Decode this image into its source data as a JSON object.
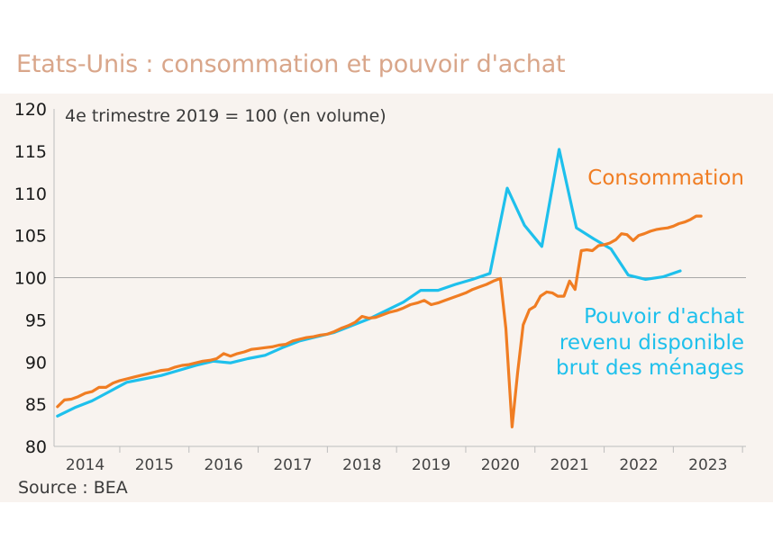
{
  "title": "Etats-Unis : consommation et pouvoir d'achat",
  "source": "Source : BEA",
  "chart_data": {
    "type": "line",
    "subtitle": "4e trimestre 2019 = 100 (en volume)",
    "ylim": [
      80,
      120
    ],
    "yticks": [
      80,
      85,
      90,
      95,
      100,
      105,
      110,
      115,
      120
    ],
    "xlim": [
      2013.55,
      2023.55
    ],
    "xticks": [
      2014,
      2015,
      2016,
      2017,
      2018,
      2019,
      2020,
      2021,
      2022,
      2023
    ],
    "reference_line": 100,
    "grid": false,
    "series": [
      {
        "name": "Consommation",
        "color": "#f07d23",
        "label_lines": [
          "Consommation"
        ],
        "points": [
          [
            2013.6,
            84.7
          ],
          [
            2013.7,
            85.5
          ],
          [
            2013.8,
            85.6
          ],
          [
            2013.9,
            85.9
          ],
          [
            2014.0,
            86.3
          ],
          [
            2014.1,
            86.5
          ],
          [
            2014.2,
            87.0
          ],
          [
            2014.3,
            87.0
          ],
          [
            2014.4,
            87.5
          ],
          [
            2014.5,
            87.8
          ],
          [
            2014.6,
            88.0
          ],
          [
            2014.7,
            88.2
          ],
          [
            2014.8,
            88.4
          ],
          [
            2014.9,
            88.6
          ],
          [
            2015.0,
            88.8
          ],
          [
            2015.1,
            89.0
          ],
          [
            2015.2,
            89.1
          ],
          [
            2015.3,
            89.4
          ],
          [
            2015.4,
            89.6
          ],
          [
            2015.5,
            89.7
          ],
          [
            2015.6,
            89.9
          ],
          [
            2015.7,
            90.1
          ],
          [
            2015.8,
            90.2
          ],
          [
            2015.9,
            90.4
          ],
          [
            2016.0,
            91.0
          ],
          [
            2016.1,
            90.7
          ],
          [
            2016.2,
            91.0
          ],
          [
            2016.3,
            91.2
          ],
          [
            2016.4,
            91.5
          ],
          [
            2016.5,
            91.6
          ],
          [
            2016.6,
            91.7
          ],
          [
            2016.7,
            91.8
          ],
          [
            2016.8,
            92.0
          ],
          [
            2016.9,
            92.1
          ],
          [
            2017.0,
            92.5
          ],
          [
            2017.1,
            92.7
          ],
          [
            2017.2,
            92.9
          ],
          [
            2017.3,
            93.0
          ],
          [
            2017.4,
            93.2
          ],
          [
            2017.5,
            93.3
          ],
          [
            2017.6,
            93.6
          ],
          [
            2017.7,
            94.0
          ],
          [
            2017.8,
            94.3
          ],
          [
            2017.9,
            94.7
          ],
          [
            2018.0,
            95.4
          ],
          [
            2018.1,
            95.2
          ],
          [
            2018.2,
            95.3
          ],
          [
            2018.3,
            95.6
          ],
          [
            2018.4,
            95.9
          ],
          [
            2018.5,
            96.1
          ],
          [
            2018.6,
            96.4
          ],
          [
            2018.7,
            96.8
          ],
          [
            2018.8,
            97.0
          ],
          [
            2018.9,
            97.3
          ],
          [
            2019.0,
            96.8
          ],
          [
            2019.1,
            97.0
          ],
          [
            2019.2,
            97.3
          ],
          [
            2019.3,
            97.6
          ],
          [
            2019.4,
            97.9
          ],
          [
            2019.5,
            98.2
          ],
          [
            2019.6,
            98.6
          ],
          [
            2019.7,
            98.9
          ],
          [
            2019.8,
            99.2
          ],
          [
            2019.9,
            99.6
          ],
          [
            2020.0,
            99.9
          ],
          [
            2020.08,
            94.0
          ],
          [
            2020.17,
            82.3
          ],
          [
            2020.25,
            88.8
          ],
          [
            2020.33,
            94.4
          ],
          [
            2020.42,
            96.2
          ],
          [
            2020.5,
            96.6
          ],
          [
            2020.58,
            97.8
          ],
          [
            2020.67,
            98.3
          ],
          [
            2020.75,
            98.2
          ],
          [
            2020.83,
            97.8
          ],
          [
            2020.92,
            97.8
          ],
          [
            2021.0,
            99.6
          ],
          [
            2021.08,
            98.6
          ],
          [
            2021.17,
            103.2
          ],
          [
            2021.25,
            103.3
          ],
          [
            2021.33,
            103.2
          ],
          [
            2021.42,
            103.8
          ],
          [
            2021.5,
            103.9
          ],
          [
            2021.58,
            104.1
          ],
          [
            2021.67,
            104.5
          ],
          [
            2021.75,
            105.2
          ],
          [
            2021.83,
            105.1
          ],
          [
            2021.92,
            104.4
          ],
          [
            2022.0,
            105.0
          ],
          [
            2022.08,
            105.2
          ],
          [
            2022.17,
            105.5
          ],
          [
            2022.25,
            105.7
          ],
          [
            2022.33,
            105.8
          ],
          [
            2022.42,
            105.9
          ],
          [
            2022.5,
            106.1
          ],
          [
            2022.58,
            106.4
          ],
          [
            2022.67,
            106.6
          ],
          [
            2022.75,
            106.9
          ],
          [
            2022.83,
            107.3
          ],
          [
            2022.9,
            107.3
          ]
        ]
      },
      {
        "name": "Pouvoir d'achat revenu disponible brut des ménages",
        "color": "#1ec0ec",
        "label_lines": [
          "Pouvoir d'achat",
          "revenu disponible",
          "brut des ménages"
        ],
        "points": [
          [
            2013.6,
            83.6
          ],
          [
            2013.85,
            84.6
          ],
          [
            2014.1,
            85.4
          ],
          [
            2014.35,
            86.5
          ],
          [
            2014.6,
            87.6
          ],
          [
            2014.85,
            88.0
          ],
          [
            2015.1,
            88.4
          ],
          [
            2015.35,
            89.0
          ],
          [
            2015.6,
            89.6
          ],
          [
            2015.85,
            90.1
          ],
          [
            2016.1,
            89.9
          ],
          [
            2016.35,
            90.4
          ],
          [
            2016.6,
            90.8
          ],
          [
            2016.85,
            91.7
          ],
          [
            2017.1,
            92.5
          ],
          [
            2017.35,
            93.0
          ],
          [
            2017.6,
            93.5
          ],
          [
            2017.85,
            94.3
          ],
          [
            2018.1,
            95.1
          ],
          [
            2018.35,
            96.1
          ],
          [
            2018.6,
            97.1
          ],
          [
            2018.85,
            98.5
          ],
          [
            2019.1,
            98.5
          ],
          [
            2019.35,
            99.2
          ],
          [
            2019.6,
            99.8
          ],
          [
            2019.85,
            100.5
          ],
          [
            2020.1,
            110.6
          ],
          [
            2020.35,
            106.2
          ],
          [
            2020.6,
            103.7
          ],
          [
            2020.85,
            115.2
          ],
          [
            2021.1,
            105.9
          ],
          [
            2021.35,
            104.6
          ],
          [
            2021.6,
            103.4
          ],
          [
            2021.85,
            100.3
          ],
          [
            2022.1,
            99.8
          ],
          [
            2022.35,
            100.1
          ],
          [
            2022.6,
            100.8
          ]
        ]
      }
    ]
  }
}
